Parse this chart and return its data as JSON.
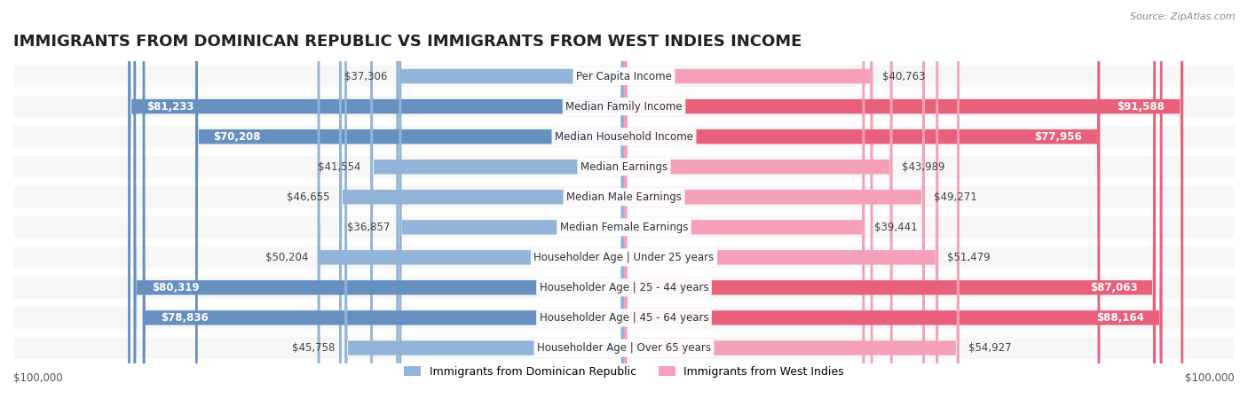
{
  "title": "IMMIGRANTS FROM DOMINICAN REPUBLIC VS IMMIGRANTS FROM WEST INDIES INCOME",
  "source": "Source: ZipAtlas.com",
  "categories": [
    "Per Capita Income",
    "Median Family Income",
    "Median Household Income",
    "Median Earnings",
    "Median Male Earnings",
    "Median Female Earnings",
    "Householder Age | Under 25 years",
    "Householder Age | 25 - 44 years",
    "Householder Age | 45 - 64 years",
    "Householder Age | Over 65 years"
  ],
  "dominican": [
    37306,
    81233,
    70208,
    41554,
    46655,
    36857,
    50204,
    80319,
    78836,
    45758
  ],
  "westindies": [
    40763,
    91588,
    77956,
    43989,
    49271,
    39441,
    51479,
    87063,
    88164,
    54927
  ],
  "dominican_labels": [
    "$37,306",
    "$81,233",
    "$70,208",
    "$41,554",
    "$46,655",
    "$36,857",
    "$50,204",
    "$80,319",
    "$78,836",
    "$45,758"
  ],
  "westindies_labels": [
    "$40,763",
    "$91,588",
    "$77,956",
    "$43,989",
    "$49,271",
    "$39,441",
    "$51,479",
    "$87,063",
    "$88,164",
    "$54,927"
  ],
  "dominican_color": "#92b4d8",
  "dominican_dark_color": "#6690c0",
  "westindies_color": "#f4a0b8",
  "westindies_dark_color": "#e8607a",
  "max_val": 100000,
  "bg_color": "#ffffff",
  "row_bg_color": "#f0f0f0",
  "legend_dominican": "Immigrants from Dominican Republic",
  "legend_westindies": "Immigrants from West Indies",
  "title_fontsize": 13,
  "label_fontsize": 8.5,
  "category_fontsize": 8.5
}
